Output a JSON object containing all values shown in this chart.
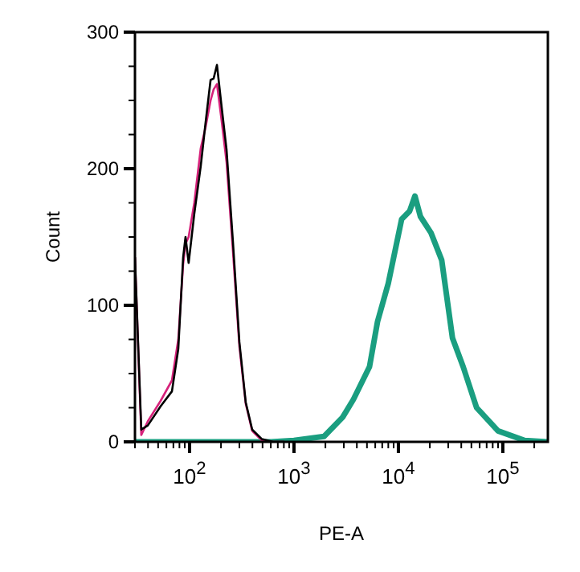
{
  "chart_data": {
    "type": "line",
    "xlabel": "PE-A",
    "ylabel": "Count",
    "log": "x",
    "xlim": [
      30,
      270000
    ],
    "ylim": [
      0,
      300
    ],
    "xticks": [
      {
        "value": 30,
        "label": null
      },
      {
        "value": 40,
        "label": null
      },
      {
        "value": 50,
        "label": null
      },
      {
        "value": 60,
        "label": null
      },
      {
        "value": 70,
        "label": null
      },
      {
        "value": 80,
        "label": null
      },
      {
        "value": 90,
        "label": null
      },
      {
        "value": 100,
        "label": "10$^{2}$"
      },
      {
        "value": 200,
        "label": null
      },
      {
        "value": 300,
        "label": null
      },
      {
        "value": 400,
        "label": null
      },
      {
        "value": 500,
        "label": null
      },
      {
        "value": 600,
        "label": null
      },
      {
        "value": 700,
        "label": null
      },
      {
        "value": 800,
        "label": null
      },
      {
        "value": 900,
        "label": null
      },
      {
        "value": 1000,
        "label": "10$^{3}$"
      },
      {
        "value": 2000,
        "label": null
      },
      {
        "value": 3000,
        "label": null
      },
      {
        "value": 4000,
        "label": null
      },
      {
        "value": 5000,
        "label": null
      },
      {
        "value": 6000,
        "label": null
      },
      {
        "value": 7000,
        "label": null
      },
      {
        "value": 8000,
        "label": null
      },
      {
        "value": 9000,
        "label": null
      },
      {
        "value": 10000,
        "label": "10$^{4}$"
      },
      {
        "value": 20000,
        "label": null
      },
      {
        "value": 30000,
        "label": null
      },
      {
        "value": 40000,
        "label": null
      },
      {
        "value": 50000,
        "label": null
      },
      {
        "value": 60000,
        "label": null
      },
      {
        "value": 70000,
        "label": null
      },
      {
        "value": 80000,
        "label": null
      },
      {
        "value": 90000,
        "label": null
      },
      {
        "value": 100000,
        "label": "10$^{5}$"
      },
      {
        "value": 200000,
        "label": null
      }
    ],
    "yticks": [
      0,
      {
        "value": 25,
        "label": null
      },
      {
        "value": 50,
        "label": null
      },
      {
        "value": 75,
        "label": null
      },
      100,
      {
        "value": 125,
        "label": null
      },
      {
        "value": 150,
        "label": null
      },
      {
        "value": 175,
        "label": null
      },
      200,
      {
        "value": 225,
        "label": null
      },
      {
        "value": 250,
        "label": null
      },
      {
        "value": 275,
        "label": null
      },
      300
    ],
    "marker": "none",
    "line_style": "solid",
    "series": [
      {
        "color": "#1a9e80",
        "x": [
          30,
          300,
          600,
          1000,
          1941,
          2924,
          3707,
          5287,
          6310,
          8000,
          10740,
          12820,
          14400,
          16250,
          20530,
          26000,
          32950,
          41700,
          56100,
          90000,
          162000,
          270000
        ],
        "values": [
          0,
          0,
          0,
          1,
          4,
          18,
          31,
          55,
          88,
          116,
          163,
          169,
          180,
          165,
          153,
          133,
          76,
          55,
          25,
          8,
          1,
          0
        ]
      },
      {
        "color": "#d6227a",
        "x": [
          30,
          34.5,
          39.8,
          52.8,
          67.8,
          78,
          86.8,
          91.5,
          98,
          111,
          128,
          142,
          159,
          170,
          183,
          203,
          226,
          260,
          300,
          345,
          398,
          493,
          632,
          800
        ],
        "values": [
          135,
          5,
          15,
          30,
          45,
          75,
          130,
          145,
          150,
          175,
          215,
          230,
          250,
          258,
          262,
          235,
          205,
          140,
          70,
          28,
          8,
          1,
          0,
          0
        ]
      },
      {
        "color": "#000000",
        "x": [
          30,
          34.5,
          39.8,
          52.8,
          67.8,
          78,
          86.8,
          91.5,
          98,
          111,
          128,
          142,
          159,
          170,
          183,
          203,
          226,
          260,
          300,
          345,
          398,
          493,
          632,
          800
        ],
        "values": [
          135,
          9,
          12,
          26,
          37,
          68,
          135,
          150,
          131,
          167,
          202,
          233,
          265,
          266,
          276,
          245,
          214,
          147,
          73,
          29,
          9,
          2,
          0,
          0
        ]
      }
    ]
  }
}
